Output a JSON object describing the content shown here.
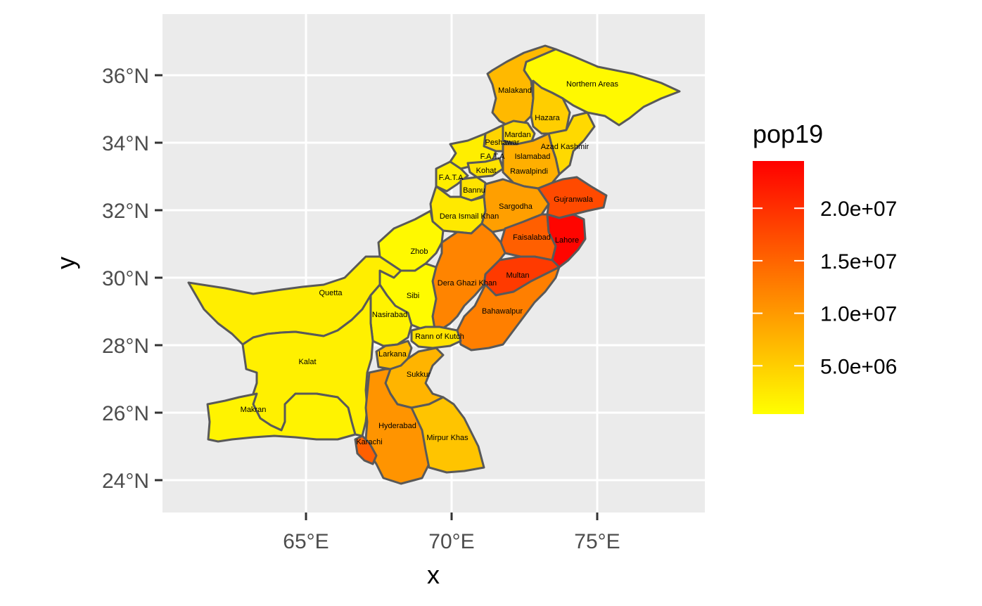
{
  "chart_data": {
    "type": "choropleth",
    "x_axis": {
      "title": "x",
      "ticks": [
        {
          "value": 65,
          "label": "65°E"
        },
        {
          "value": 70,
          "label": "70°E"
        },
        {
          "value": 75,
          "label": "75°E"
        }
      ]
    },
    "y_axis": {
      "title": "y",
      "ticks": [
        {
          "value": 24,
          "label": "24°N"
        },
        {
          "value": 26,
          "label": "26°N"
        },
        {
          "value": 28,
          "label": "28°N"
        },
        {
          "value": 30,
          "label": "30°N"
        },
        {
          "value": 32,
          "label": "32°N"
        },
        {
          "value": 34,
          "label": "34°N"
        },
        {
          "value": 36,
          "label": "36°N"
        }
      ]
    },
    "legend": {
      "title": "pop19",
      "position": "right",
      "low_color": "#ffff00",
      "high_color": "#ff0000",
      "min": 400000,
      "max": 24500000,
      "breaks": [
        {
          "value": 5000000,
          "label": "5.0e+06"
        },
        {
          "value": 10000000,
          "label": "1.0e+07"
        },
        {
          "value": 15000000,
          "label": "1.5e+07"
        },
        {
          "value": 20000000,
          "label": "2.0e+07"
        }
      ]
    },
    "panel_background": "#ebebeb",
    "grid_color": "#ffffff",
    "border_color": "#595959",
    "regions": [
      {
        "name": "Northern Areas",
        "pop19": 1000000
      },
      {
        "name": "Malakand",
        "pop19": 7000000
      },
      {
        "name": "Hazara",
        "pop19": 5000000
      },
      {
        "name": "Mardan",
        "pop19": 4000000
      },
      {
        "name": "Peshawar",
        "pop19": 4500000
      },
      {
        "name": "Azad Kashmir",
        "pop19": 4000000
      },
      {
        "name": "F.A.T.A",
        "pop19": 2000000
      },
      {
        "name": "Islamabad",
        "pop19": 2000000
      },
      {
        "name": "Kohat",
        "pop19": 3000000
      },
      {
        "name": "Rawalpindi",
        "pop19": 8000000
      },
      {
        "name": "F.A.T.A",
        "pop19": 2000000
      },
      {
        "name": "Bannu",
        "pop19": 3000000
      },
      {
        "name": "Sargodha",
        "pop19": 9500000
      },
      {
        "name": "Gujranwala",
        "pop19": 17500000
      },
      {
        "name": "Dera Ismail Khan",
        "pop19": 2500000
      },
      {
        "name": "Faisalabad",
        "pop19": 15500000
      },
      {
        "name": "Lahore",
        "pop19": 24000000
      },
      {
        "name": "Zhob",
        "pop19": 1000000
      },
      {
        "name": "Multan",
        "pop19": 19000000
      },
      {
        "name": "Quetta",
        "pop19": 2000000
      },
      {
        "name": "Dera Ghazi Khan",
        "pop19": 12000000
      },
      {
        "name": "Sibi",
        "pop19": 800000
      },
      {
        "name": "Nasirabad",
        "pop19": 1500000
      },
      {
        "name": "Bahawalpur",
        "pop19": 12500000
      },
      {
        "name": "Rann of Kutch",
        "pop19": 3000000
      },
      {
        "name": "Kalat",
        "pop19": 1800000
      },
      {
        "name": "Larkana",
        "pop19": 6500000
      },
      {
        "name": "Sukkur",
        "pop19": 7500000
      },
      {
        "name": "Makran",
        "pop19": 1500000
      },
      {
        "name": "Hyderabad",
        "pop19": 10500000
      },
      {
        "name": "Mirpur Khas",
        "pop19": 6000000
      },
      {
        "name": "Karachi",
        "pop19": 15500000
      }
    ]
  }
}
